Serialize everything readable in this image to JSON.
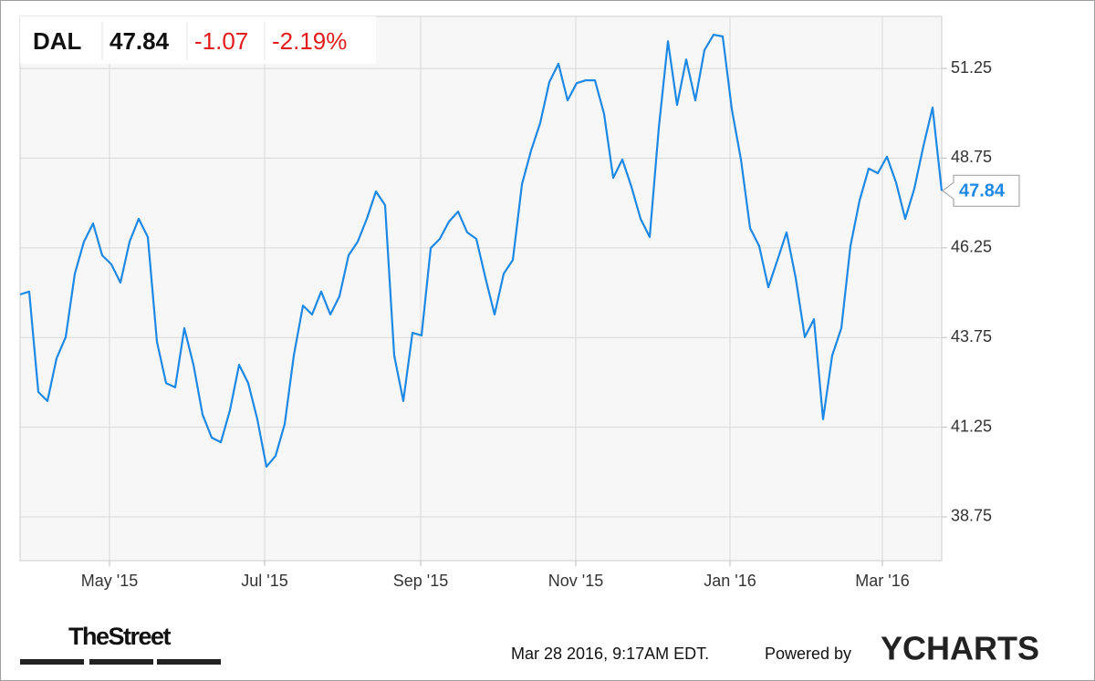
{
  "chart_data": {
    "type": "line",
    "change": "-1.07",
    "change_pct": "-2.19%",
    "series": [
      {
        "name": "DAL",
        "color": "#1e88e5",
        "values": [
          44.95,
          45.03,
          42.23,
          41.98,
          43.17,
          43.76,
          45.53,
          46.42,
          46.93,
          46.04,
          45.79,
          45.28,
          46.42,
          47.06,
          46.55,
          43.63,
          42.48,
          42.36,
          44.01,
          42.99,
          41.6,
          40.96,
          40.83,
          41.72,
          42.99,
          42.48,
          41.47,
          40.15,
          40.45,
          41.34,
          43.25,
          44.64,
          44.39,
          45.03,
          44.39,
          44.9,
          46.04,
          46.42,
          47.06,
          47.82,
          47.44,
          43.25,
          41.98,
          43.88,
          43.81,
          46.24,
          46.5,
          46.98,
          47.26,
          46.68,
          46.5,
          45.41,
          44.39,
          45.53,
          45.91,
          48.02,
          48.96,
          49.73,
          50.87,
          51.38,
          50.36,
          50.84,
          50.92,
          50.92,
          49.98,
          48.2,
          48.71,
          47.95,
          47.06,
          46.55,
          49.6,
          52.01,
          50.23,
          51.5,
          50.36,
          51.76,
          52.19,
          52.14,
          50.11,
          48.71,
          46.8,
          46.3,
          45.15,
          45.91,
          46.68,
          45.41,
          43.76,
          44.26,
          41.47,
          43.25,
          44.01,
          46.3,
          47.57,
          48.46,
          48.33,
          48.79,
          48.07,
          47.06,
          47.9,
          49.09,
          50.16,
          47.84
        ]
      }
    ],
    "xlim": [
      0,
      101
    ],
    "xticks": [
      {
        "value": 9.8,
        "label": "May '15"
      },
      {
        "value": 26.8,
        "label": "Jul '15"
      },
      {
        "value": 43.9,
        "label": "Sep '15"
      },
      {
        "value": 60.9,
        "label": "Nov '15"
      },
      {
        "value": 77.8,
        "label": "Jan '16"
      },
      {
        "value": 94.5,
        "label": "Mar '16"
      }
    ],
    "ylim": [
      37.53,
      52.7
    ],
    "yticks": [
      38.75,
      41.25,
      43.75,
      46.25,
      48.75,
      51.25
    ],
    "grid": true
  },
  "footer": {
    "source_logo": "TheStreet",
    "timestamp": "Mar 28 2016, 9:17AM EDT.",
    "powered_by": "Powered by",
    "brand": "YCHARTS"
  }
}
